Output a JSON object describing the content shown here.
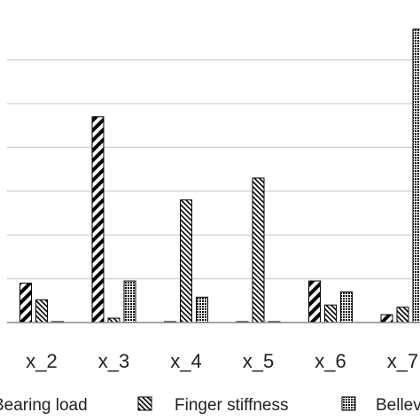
{
  "chart_data": {
    "type": "bar",
    "categories": [
      "x_2",
      "x_3",
      "x_4",
      "x_5",
      "x_6",
      "x_7"
    ],
    "series": [
      {
        "name": "Bearing load",
        "pattern": "diagonal-thick",
        "values": [
          0.9,
          4.7,
          0.02,
          0.02,
          0.95,
          0.18
        ]
      },
      {
        "name": "Finger stiffness",
        "pattern": "diagonal-thin",
        "values": [
          0.52,
          0.1,
          2.8,
          3.3,
          0.4,
          0.35
        ]
      },
      {
        "name": "Belleville",
        "pattern": "dots",
        "values": [
          0.02,
          0.95,
          0.58,
          0.02,
          0.7,
          6.7
        ]
      }
    ],
    "ylim": [
      0,
      6.8
    ],
    "gridlines": [
      1,
      2,
      3,
      4,
      5,
      6
    ],
    "grid": true,
    "legend_position": "bottom",
    "xlabel": "",
    "ylabel": "",
    "title": ""
  }
}
